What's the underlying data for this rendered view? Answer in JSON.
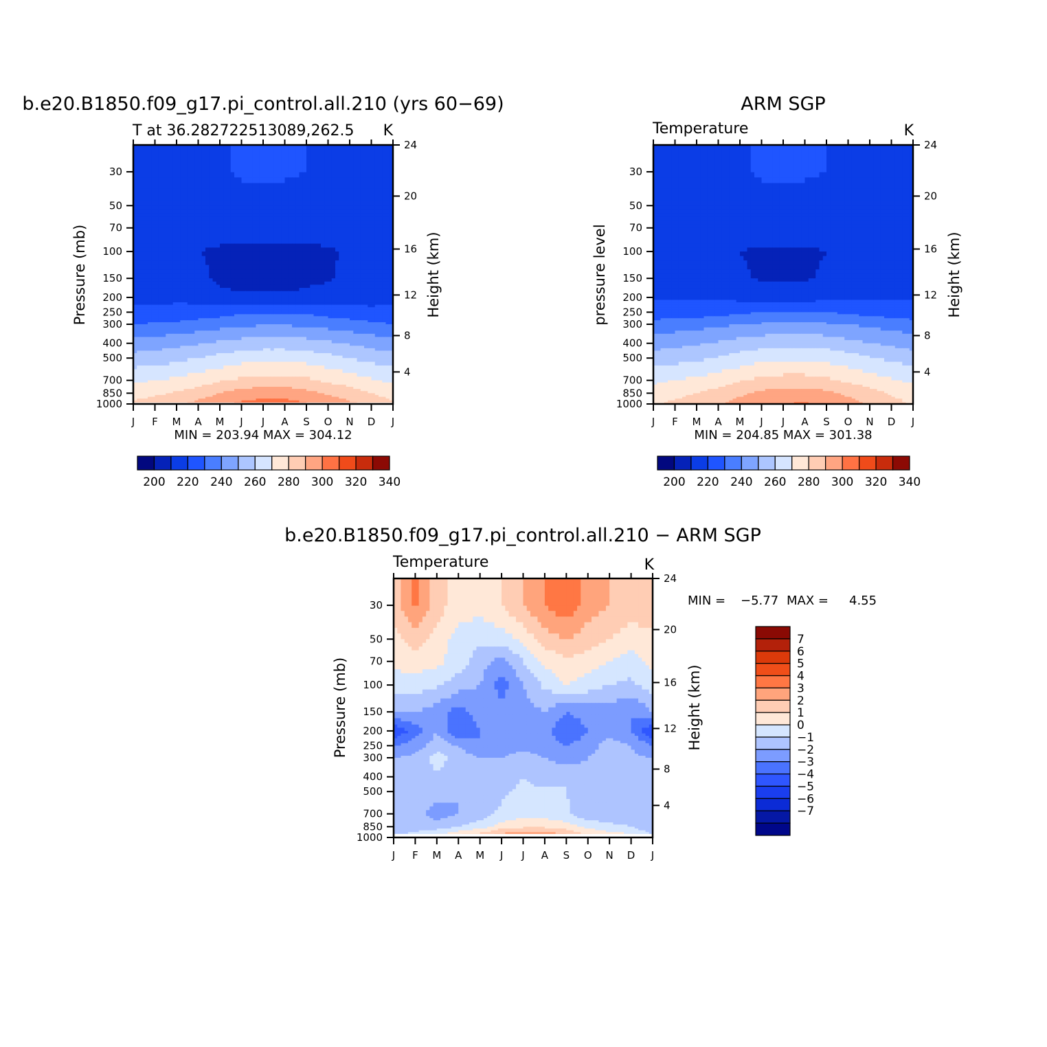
{
  "chart_data": [
    {
      "type": "heatmap",
      "title": "b.e20.B1850.f09_g17.pi_control.all.210 (yrs 60−69)",
      "subtitle_left": "T at 36.282722513089,262.5",
      "units": "K",
      "ylabel": "Pressure (mb)",
      "ylabel_right": "Height (km)",
      "x_ticks": [
        "J",
        "F",
        "M",
        "A",
        "M",
        "J",
        "J",
        "A",
        "S",
        "O",
        "N",
        "D",
        "J"
      ],
      "y_ticks": [
        "30",
        "50",
        "70",
        "100",
        "150",
        "200",
        "250",
        "300",
        "400",
        "500",
        "700",
        "850",
        "1000"
      ],
      "y_ticks_right": [
        "24",
        "20",
        "16",
        "12",
        "8",
        "4"
      ],
      "stats": "MIN = 203.94 MAX = 304.12",
      "colorbar_labels": [
        "200",
        "220",
        "240",
        "260",
        "280",
        "300",
        "320",
        "340"
      ],
      "levels": [
        200,
        210,
        220,
        230,
        240,
        250,
        260,
        270,
        280,
        290,
        300,
        310,
        320,
        330,
        340
      ],
      "z_pressure": [
        [
          218,
          217,
          217,
          218,
          219,
          221,
          222,
          221,
          220,
          218,
          217,
          217,
          218
        ],
        [
          216,
          215,
          215,
          216,
          216,
          217,
          217,
          217,
          216,
          215,
          215,
          215,
          216
        ],
        [
          212,
          213,
          214,
          213,
          213,
          213,
          213,
          213,
          213,
          214,
          214,
          213,
          212
        ],
        [
          215,
          214,
          213,
          210,
          209,
          208,
          208,
          208,
          208,
          209,
          211,
          213,
          215
        ],
        [
          216,
          216,
          216,
          212,
          208,
          207,
          207,
          207,
          208,
          209,
          212,
          214,
          216
        ],
        [
          218,
          218,
          218,
          217,
          213,
          211,
          211,
          211,
          212,
          214,
          216,
          217,
          218
        ],
        [
          222,
          222,
          223,
          224,
          226,
          228,
          229,
          229,
          228,
          226,
          224,
          222,
          222
        ],
        [
          230,
          231,
          232,
          234,
          236,
          238,
          239,
          239,
          238,
          236,
          234,
          232,
          230
        ],
        [
          244,
          245,
          247,
          249,
          252,
          254,
          255,
          255,
          254,
          252,
          249,
          246,
          244
        ],
        [
          254,
          255,
          257,
          260,
          263,
          266,
          267,
          267,
          266,
          263,
          260,
          257,
          254
        ],
        [
          268,
          270,
          272,
          275,
          279,
          282,
          284,
          284,
          282,
          278,
          275,
          271,
          268
        ],
        [
          276,
          278,
          281,
          285,
          290,
          294,
          296,
          296,
          293,
          289,
          285,
          280,
          276
        ],
        [
          282,
          285,
          288,
          293,
          298,
          302,
          304,
          304,
          301,
          297,
          292,
          287,
          282
        ]
      ]
    },
    {
      "type": "heatmap",
      "title": "ARM SGP",
      "subtitle_left": "Temperature",
      "units": "K",
      "ylabel": "pressure level",
      "ylabel_right": "Height (km)",
      "x_ticks": [
        "J",
        "F",
        "M",
        "A",
        "M",
        "J",
        "J",
        "A",
        "S",
        "O",
        "N",
        "D",
        "J"
      ],
      "y_ticks": [
        "30",
        "50",
        "70",
        "100",
        "150",
        "200",
        "250",
        "300",
        "400",
        "500",
        "700",
        "850",
        "1000"
      ],
      "y_ticks_right": [
        "24",
        "20",
        "16",
        "12",
        "8",
        "4"
      ],
      "stats": "MIN = 204.85 MAX = 301.38",
      "colorbar_labels": [
        "200",
        "220",
        "240",
        "260",
        "280",
        "300",
        "320",
        "340"
      ],
      "levels": [
        200,
        210,
        220,
        230,
        240,
        250,
        260,
        270,
        280,
        290,
        300,
        310,
        320,
        330,
        340
      ],
      "z_pressure": [
        [
          218,
          217,
          217,
          218,
          219,
          221,
          222,
          221,
          220,
          218,
          217,
          217,
          218
        ],
        [
          216,
          215,
          215,
          216,
          216,
          217,
          217,
          217,
          216,
          215,
          215,
          215,
          216
        ],
        [
          212,
          213,
          214,
          213,
          213,
          213,
          213,
          213,
          213,
          214,
          214,
          213,
          212
        ],
        [
          215,
          214,
          213,
          211,
          210,
          209,
          209,
          209,
          210,
          212,
          213,
          214,
          215
        ],
        [
          217,
          217,
          217,
          215,
          211,
          209,
          209,
          209,
          211,
          213,
          215,
          216,
          217
        ],
        [
          219,
          219,
          219,
          219,
          217,
          216,
          215,
          216,
          217,
          218,
          218,
          219,
          219
        ],
        [
          224,
          224,
          225,
          226,
          228,
          230,
          231,
          231,
          230,
          228,
          226,
          225,
          224
        ],
        [
          234,
          235,
          236,
          238,
          240,
          241,
          242,
          242,
          241,
          240,
          238,
          236,
          234
        ],
        [
          246,
          247,
          249,
          251,
          254,
          256,
          257,
          257,
          256,
          253,
          250,
          248,
          246
        ],
        [
          255,
          256,
          258,
          261,
          264,
          267,
          268,
          268,
          267,
          264,
          261,
          258,
          255
        ],
        [
          268,
          270,
          272,
          275,
          279,
          282,
          284,
          284,
          282,
          278,
          275,
          271,
          268
        ],
        [
          275,
          277,
          280,
          284,
          288,
          292,
          294,
          294,
          292,
          288,
          284,
          279,
          275
        ],
        [
          279,
          282,
          285,
          289,
          294,
          298,
          300,
          301,
          298,
          294,
          289,
          284,
          279
        ]
      ]
    },
    {
      "type": "heatmap",
      "title": "b.e20.B1850.f09_g17.pi_control.all.210 − ARM SGP",
      "subtitle_left": "Temperature",
      "units": "K",
      "ylabel": "Pressure (mb)",
      "ylabel_right": "Height (km)",
      "x_ticks": [
        "J",
        "F",
        "M",
        "A",
        "M",
        "J",
        "J",
        "A",
        "S",
        "O",
        "N",
        "D",
        "J"
      ],
      "y_ticks": [
        "30",
        "50",
        "70",
        "100",
        "150",
        "200",
        "250",
        "300",
        "400",
        "500",
        "700",
        "850",
        "1000"
      ],
      "y_ticks_right": [
        "24",
        "20",
        "16",
        "12",
        "8",
        "4"
      ],
      "stats_min_label": "MIN =",
      "stats_min": "−5.77",
      "stats_max_label": "MAX =",
      "stats_max": "4.55",
      "colorbar_labels": [
        "7",
        "6",
        "5",
        "4",
        "3",
        "2",
        "1",
        "0",
        "−1",
        "−2",
        "−3",
        "−4",
        "−5",
        "−6",
        "−7"
      ],
      "levels": [
        -8,
        -7,
        -6,
        -5,
        -4,
        -3,
        -2,
        -1,
        0,
        1,
        2,
        3,
        4,
        5,
        6,
        7,
        8
      ],
      "z_pressure": [
        [
          1.5,
          3.2,
          1.5,
          0.5,
          0.5,
          1.0,
          2.0,
          3.0,
          3.8,
          2.5,
          2.0,
          1.5,
          2.0
        ],
        [
          0.5,
          1.5,
          0.5,
          -0.5,
          -0.8,
          -0.5,
          0.3,
          1.5,
          2.0,
          1.5,
          1.0,
          0.5,
          0.5
        ],
        [
          0.3,
          0.5,
          0.3,
          -0.5,
          -1.5,
          -2.5,
          -1.0,
          0.2,
          0.8,
          0.5,
          0.0,
          -0.5,
          0.3
        ],
        [
          -0.5,
          -0.5,
          -0.8,
          -1.5,
          -2.0,
          -3.5,
          -2.0,
          -0.8,
          0.0,
          -0.5,
          -1.0,
          -1.2,
          -0.5
        ],
        [
          -2.0,
          -2.0,
          -2.5,
          -3.5,
          -2.5,
          -2.5,
          -2.5,
          -2.0,
          -3.0,
          -2.5,
          -2.5,
          -3.0,
          -2.0
        ],
        [
          -5.0,
          -3.5,
          -2.0,
          -4.0,
          -3.0,
          -2.5,
          -2.5,
          -2.5,
          -4.0,
          -3.0,
          -2.5,
          -3.0,
          -5.0
        ],
        [
          -3.0,
          -2.5,
          -1.5,
          -2.0,
          -3.0,
          -2.5,
          -2.5,
          -2.5,
          -3.0,
          -2.5,
          -1.5,
          -2.0,
          -3.0
        ],
        [
          -2.0,
          -1.8,
          -0.5,
          -1.5,
          -2.0,
          -2.0,
          -1.5,
          -2.0,
          -2.5,
          -2.0,
          -1.5,
          -1.8,
          -2.0
        ],
        [
          -1.8,
          -1.5,
          -1.2,
          -1.5,
          -1.5,
          -1.5,
          -1.0,
          -1.5,
          -1.0,
          -1.8,
          -1.5,
          -1.5,
          -1.8
        ],
        [
          -1.5,
          -1.5,
          -1.5,
          -2.0,
          -1.5,
          -1.2,
          -0.8,
          -0.8,
          -1.0,
          -1.5,
          -1.5,
          -1.5,
          -1.5
        ],
        [
          -1.5,
          -1.5,
          -2.5,
          -2.0,
          -1.5,
          -0.8,
          -0.3,
          -0.5,
          -0.8,
          -1.8,
          -1.5,
          -1.5,
          -1.5
        ],
        [
          -2.0,
          -1.5,
          -1.5,
          -1.0,
          -0.5,
          0.5,
          0.8,
          0.8,
          0.5,
          -0.3,
          -0.8,
          -1.0,
          -2.0
        ],
        [
          -0.5,
          -0.5,
          0.5,
          1.5,
          2.0,
          3.0,
          3.5,
          3.3,
          2.5,
          1.5,
          1.0,
          0.5,
          -0.5
        ]
      ]
    }
  ],
  "colors": {
    "temp_palette": [
      "#02087f",
      "#0522b8",
      "#0b3de6",
      "#1f55ff",
      "#4a7eff",
      "#7ea4ff",
      "#adc6ff",
      "#d6e5ff",
      "#ffe8d8",
      "#ffcdb4",
      "#ffa582",
      "#ff7244",
      "#f04b1a",
      "#c82c0c",
      "#8c0a04"
    ],
    "diff_palette": [
      "#00078a",
      "#0518a5",
      "#0b2bd6",
      "#1a3ef0",
      "#2f56ff",
      "#4a73ff",
      "#7c9cff",
      "#aec4ff",
      "#d5e6ff",
      "#ffe8d8",
      "#ffcdb4",
      "#ffa47c",
      "#ff7744",
      "#f04e19",
      "#dc3a0a",
      "#b3210a",
      "#8a0a04"
    ],
    "missing": "#ffffff"
  }
}
